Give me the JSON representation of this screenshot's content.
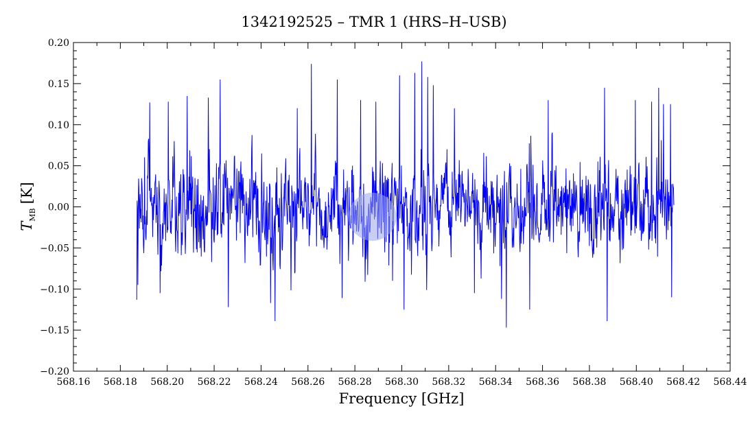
{
  "chart_data": {
    "type": "line",
    "title": "1342192525 – TMR 1 (HRS–H–USB)",
    "xlabel": "Frequency [GHz]",
    "ylabel_main": "T",
    "ylabel_sub": "MB",
    "ylabel_unit": "[K]",
    "xlim": [
      568.16,
      568.44
    ],
    "ylim": [
      -0.2,
      0.2
    ],
    "xticks": [
      568.16,
      568.18,
      568.2,
      568.22,
      568.24,
      568.26,
      568.28,
      568.3,
      568.32,
      568.34,
      568.36,
      568.38,
      568.4,
      568.42,
      568.44
    ],
    "xtick_labels": [
      "568.16",
      "568.18",
      "568.20",
      "568.22",
      "568.24",
      "568.26",
      "568.28",
      "568.30",
      "568.32",
      "568.34",
      "568.36",
      "568.38",
      "568.40",
      "568.42",
      "568.44"
    ],
    "yticks": [
      -0.2,
      -0.15,
      -0.1,
      -0.05,
      0.0,
      0.05,
      0.1,
      0.15,
      0.2
    ],
    "ytick_labels": [
      "−0.20",
      "−0.15",
      "−0.10",
      "−0.05",
      "0.00",
      "0.05",
      "0.10",
      "0.15",
      "0.20"
    ],
    "grid": false,
    "series": [
      {
        "color": "#0000ff",
        "x_start": 568.187,
        "x_end": 568.416,
        "noise_rms_K": 0.045,
        "y_min": -0.147,
        "y_max": 0.177,
        "peaks": [
          {
            "x": 568.1865,
            "y": -0.113
          },
          {
            "x": 568.1875,
            "y": -0.095
          },
          {
            "x": 568.1925,
            "y": 0.127
          },
          {
            "x": 568.197,
            "y": -0.105
          },
          {
            "x": 568.2005,
            "y": 0.128
          },
          {
            "x": 568.2085,
            "y": 0.135
          },
          {
            "x": 568.2175,
            "y": 0.133
          },
          {
            "x": 568.2225,
            "y": 0.155
          },
          {
            "x": 568.226,
            "y": -0.122
          },
          {
            "x": 568.244,
            "y": -0.117
          },
          {
            "x": 568.246,
            "y": -0.139
          },
          {
            "x": 568.2555,
            "y": 0.12
          },
          {
            "x": 568.2615,
            "y": 0.174
          },
          {
            "x": 568.2725,
            "y": 0.155
          },
          {
            "x": 568.2745,
            "y": -0.111
          },
          {
            "x": 568.2825,
            "y": 0.13
          },
          {
            "x": 568.289,
            "y": 0.128
          },
          {
            "x": 568.296,
            "y": -0.09
          },
          {
            "x": 568.299,
            "y": 0.16
          },
          {
            "x": 568.301,
            "y": -0.125
          },
          {
            "x": 568.3055,
            "y": 0.163
          },
          {
            "x": 568.3085,
            "y": 0.177
          },
          {
            "x": 568.311,
            "y": 0.158
          },
          {
            "x": 568.3135,
            "y": 0.148
          },
          {
            "x": 568.3225,
            "y": 0.12
          },
          {
            "x": 568.331,
            "y": -0.105
          },
          {
            "x": 568.3425,
            "y": -0.112
          },
          {
            "x": 568.3445,
            "y": -0.147
          },
          {
            "x": 568.3545,
            "y": -0.125
          },
          {
            "x": 568.3625,
            "y": 0.13
          },
          {
            "x": 568.3865,
            "y": 0.145
          },
          {
            "x": 568.3875,
            "y": -0.139
          },
          {
            "x": 568.3995,
            "y": 0.13
          },
          {
            "x": 568.4065,
            "y": 0.128
          },
          {
            "x": 568.4095,
            "y": 0.145
          },
          {
            "x": 568.4115,
            "y": 0.125
          },
          {
            "x": 568.4145,
            "y": 0.125
          },
          {
            "x": 568.415,
            "y": -0.11
          }
        ]
      }
    ]
  },
  "overlay": {
    "highlight_x": 568.2875,
    "highlight_y": -0.012,
    "color": "#9aa5e8"
  }
}
